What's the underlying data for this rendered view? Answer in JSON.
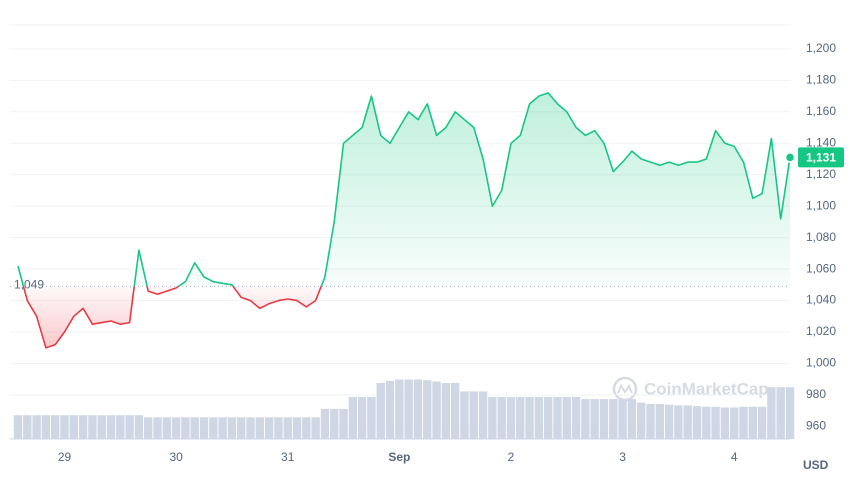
{
  "chart_data": {
    "type": "line",
    "categories": [
      null,
      null,
      null,
      null,
      null,
      "29",
      null,
      null,
      null,
      null,
      null,
      null,
      null,
      null,
      null,
      null,
      null,
      "30",
      null,
      null,
      null,
      null,
      null,
      null,
      null,
      null,
      null,
      null,
      null,
      "31",
      null,
      null,
      null,
      null,
      null,
      null,
      null,
      null,
      null,
      null,
      null,
      "Sep",
      null,
      null,
      null,
      null,
      null,
      null,
      null,
      null,
      null,
      null,
      null,
      "2",
      null,
      null,
      null,
      null,
      null,
      null,
      null,
      null,
      null,
      null,
      null,
      "3",
      null,
      null,
      null,
      null,
      null,
      null,
      null,
      null,
      null,
      null,
      null,
      "4",
      null,
      null,
      null,
      null,
      null,
      null
    ],
    "values": [
      1062,
      1040,
      1030,
      1010,
      1012,
      1020,
      1030,
      1035,
      1025,
      1026,
      1027,
      1025,
      1026,
      1072,
      1046,
      1044,
      1046,
      1048,
      1052,
      1064,
      1055,
      1052,
      1051,
      1050,
      1042,
      1040,
      1035,
      1038,
      1040,
      1041,
      1040,
      1036,
      1040,
      1055,
      1090,
      1140,
      1145,
      1150,
      1170,
      1145,
      1140,
      1150,
      1160,
      1155,
      1165,
      1145,
      1150,
      1160,
      1155,
      1150,
      1130,
      1100,
      1110,
      1140,
      1145,
      1165,
      1170,
      1172,
      1165,
      1160,
      1150,
      1145,
      1148,
      1140,
      1122,
      1128,
      1135,
      1130,
      1128,
      1126,
      1128,
      1126,
      1128,
      1128,
      1130,
      1148,
      1140,
      1138,
      1128,
      1105,
      1108,
      1143,
      1092,
      1131
    ],
    "volume": [
      34,
      34,
      34,
      34,
      34,
      34,
      34,
      34,
      34,
      34,
      34,
      34,
      34,
      34,
      31,
      31,
      31,
      31,
      31,
      31,
      31,
      31,
      31,
      31,
      31,
      31,
      31,
      31,
      31,
      31,
      31,
      31,
      31,
      43,
      43,
      43,
      60,
      60,
      60,
      80,
      83,
      85,
      85,
      85,
      84,
      82,
      80,
      80,
      68,
      68,
      68,
      60,
      60,
      60,
      60,
      60,
      60,
      60,
      60,
      60,
      60,
      57,
      57,
      57,
      57,
      57,
      57,
      52,
      50,
      50,
      49,
      48,
      48,
      47,
      46,
      46,
      45,
      45,
      46,
      46,
      46,
      74,
      74,
      74
    ],
    "colors": {
      "up": "#16c784",
      "down": "#ea3943",
      "volume": "#cfd6e4"
    },
    "baseline": {
      "value": 1049,
      "label": "1,049"
    },
    "current_price": {
      "value": 1131,
      "label": "1,131"
    },
    "ylim": [
      952,
      1212
    ],
    "yticks": [
      960,
      980,
      {
        "value": 1000,
        "label": "1,000"
      },
      {
        "value": 1020,
        "label": "1,020"
      },
      {
        "value": 1040,
        "label": "1,040"
      },
      {
        "value": 1060,
        "label": "1,060"
      },
      {
        "value": 1080,
        "label": "1,080"
      },
      {
        "value": 1100,
        "label": "1,100"
      },
      {
        "value": 1120,
        "label": "1,120"
      },
      {
        "value": 1140,
        "label": "1,140"
      },
      {
        "value": 1160,
        "label": "1,160"
      },
      {
        "value": 1180,
        "label": "1,180"
      },
      {
        "value": 1200,
        "label": "1,200"
      }
    ],
    "y2lim": [
      0,
      100
    ],
    "grid": true,
    "unit": "USD",
    "watermark": "CoinMarketCap"
  }
}
